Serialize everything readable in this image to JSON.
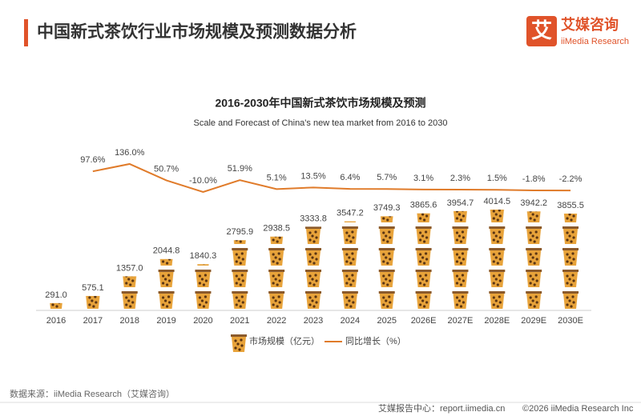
{
  "header": {
    "title": "中国新式茶饮行业市场规模及预测数据分析",
    "logo_mark": "艾",
    "logo_name": "艾媒咨询",
    "logo_sub": "iiMedia Research"
  },
  "chart_data": {
    "type": "pictograph-bar-line",
    "title": "2016-2030年中国新式茶饮市场规模及预测",
    "subtitle": "Scale and Forecast of China's new tea market from 2016 to 2030",
    "categories": [
      "2016",
      "2017",
      "2018",
      "2019",
      "2020",
      "2021",
      "2022",
      "2023",
      "2024",
      "2025",
      "2026E",
      "2027E",
      "2028E",
      "2029E",
      "2030E"
    ],
    "series": [
      {
        "name": "市场规模（亿元）",
        "color": "#e8a33a",
        "type": "bar",
        "values": [
          291.0,
          575.1,
          1357.0,
          2044.8,
          1840.3,
          2795.9,
          2938.5,
          3333.8,
          3547.2,
          3749.3,
          3865.6,
          3954.7,
          4014.5,
          3942.2,
          3855.5
        ],
        "value_labels": [
          "291.0",
          "575.1",
          "1357.0",
          "2044.8",
          "1840.3",
          "2795.9",
          "2938.5",
          "3333.8",
          "3547.2",
          "3749.3",
          "3865.6",
          "3954.7",
          "4014.5",
          "3942.2",
          "3855.5"
        ]
      },
      {
        "name": "同比增长（%）",
        "color": "#e07b2a",
        "type": "line",
        "values": [
          null,
          97.6,
          136.0,
          50.7,
          -10.0,
          51.9,
          5.1,
          13.5,
          6.4,
          5.7,
          3.1,
          2.3,
          1.5,
          -1.8,
          -2.2
        ],
        "value_labels": [
          null,
          "97.6%",
          "136.0%",
          "50.7%",
          "-10.0%",
          "51.9%",
          "5.1%",
          "13.5%",
          "6.4%",
          "5.7%",
          "3.1%",
          "2.3%",
          "1.5%",
          "-1.8%",
          "-2.2%"
        ]
      }
    ]
  },
  "footer": {
    "source": "数据来源：iiMedia Research（艾媒咨询）",
    "report": "艾媒报告中心：report.iimedia.cn",
    "copyright": "©2026  iiMedia Research  Inc"
  }
}
